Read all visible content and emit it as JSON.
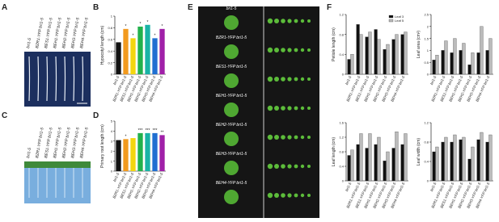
{
  "panel_labels": [
    "A",
    "B",
    "C",
    "D",
    "E",
    "F"
  ],
  "photos": [
    {
      "genotypes": [
        "bri1-5",
        "BZR1-YFP bri1-5",
        "BES1-YFP bri1-5",
        "BEH1-YFP bri1-5",
        "BEH2-YFP bri1-5",
        "BEH3-YFP bri1-5",
        "BEH4-YFP bri1-5"
      ]
    },
    {
      "genotypes": [
        "bri1-5",
        "BZR1-YFP bri1-5",
        "BES1-YFP bri1-5",
        "BEH1-YFP bri1-5",
        "BEH2-YFP bri1-5",
        "BEH3-YFP bri1-5",
        "BEH4-YFP bri1-5"
      ]
    },
    {
      "genotypes": [
        "bri1-5",
        "BZR1-YFP bri1-5",
        "BES1-YFP bri1-5",
        "BEH1-YFP bri1-5",
        "BEH2-YFP bri1-5",
        "BEH3-YFP bri1-5",
        "BEH4-YFP bri1-5"
      ]
    }
  ],
  "chart_data": [
    {
      "type": "bar",
      "ylabel": "Hypocotyl length (cm)",
      "categories": [
        "bri1-5",
        "BZR1-YFP bri1-5",
        "BES1-YFP bri1-5",
        "BEH1-YFP bri1-5",
        "BEH2-YFP bri1-5",
        "BEH3-YFP bri1-5",
        "BEH4-YFP bri1-5"
      ],
      "values": [
        0.55,
        0.78,
        0.62,
        0.82,
        0.85,
        0.62,
        0.78
      ],
      "colors": [
        "#111111",
        "#f29a1e",
        "#f4d60f",
        "#22b14c",
        "#19b3a6",
        "#1f6fd1",
        "#a020a8"
      ],
      "annotations": [
        null,
        "*",
        "*",
        "*",
        "*",
        "*",
        "*"
      ],
      "ylim": [
        0,
        1
      ],
      "yticks": [
        0,
        0.2,
        0.4,
        0.6,
        0.8,
        1
      ]
    },
    {
      "type": "bar",
      "ylabel": "Primary root length (cm)",
      "categories": [
        "bri1-5",
        "BZR1-YFP bri1-5",
        "BES1-YFP bri1-5",
        "BEH1-YFP bri1-5",
        "BEH2-YFP bri1-5",
        "BEH3-YFP bri1-5",
        "BEH4-YFP bri1-5"
      ],
      "values": [
        3.1,
        3.2,
        3.3,
        3.8,
        3.8,
        3.8,
        3.6
      ],
      "colors": [
        "#111111",
        "#f29a1e",
        "#f4d60f",
        "#22b14c",
        "#19b3a6",
        "#1f6fd1",
        "#a020a8"
      ],
      "annotations": [
        null,
        "*",
        null,
        "***",
        "***",
        "***",
        "**"
      ],
      "ylim": [
        0,
        5
      ],
      "yticks": [
        0,
        1,
        2,
        3,
        4,
        5
      ]
    },
    {
      "type": "grouped-bar",
      "ylabel": "Petiole length (cm)",
      "legend": true,
      "categories": [
        "bri1-5",
        "BZR1-YFP bri1-5",
        "BES1-YFP bri1-5",
        "BEH1-YFP bri1-5",
        "BEH2-YFP bri1-5",
        "BEH3-YFP bri1-5",
        "BEH4-YFP bri1-5"
      ],
      "series": [
        {
          "name": "Leaf 3",
          "color": "#111111",
          "values": [
            0.3,
            1.0,
            0.75,
            0.9,
            0.5,
            0.7,
            0.8
          ]
        },
        {
          "name": "Leaf 5",
          "color": "#bbbbbb",
          "values": [
            0.4,
            0.8,
            0.85,
            0.7,
            0.6,
            0.8,
            0.85
          ]
        }
      ],
      "ylim": [
        0,
        1.2
      ],
      "yticks": [
        0,
        0.4,
        0.8,
        1.2
      ]
    },
    {
      "type": "grouped-bar",
      "ylabel": "Leaf area (cm²)",
      "categories": [
        "bri1-5",
        "BZR1-YFP bri1-5",
        "BES1-YFP bri1-5",
        "BEH1-YFP bri1-5",
        "BEH2-YFP bri1-5",
        "BEH3-YFP bri1-5",
        "BEH4-YFP bri1-5"
      ],
      "series": [
        {
          "name": "Leaf 3",
          "color": "#111111",
          "values": [
            0.6,
            1.0,
            0.9,
            1.0,
            0.4,
            0.9,
            1.0
          ]
        },
        {
          "name": "Leaf 5",
          "color": "#bbbbbb",
          "values": [
            0.8,
            1.4,
            1.5,
            1.3,
            0.9,
            2.0,
            1.5
          ]
        }
      ],
      "ylim": [
        0,
        2.5
      ],
      "yticks": [
        0,
        0.5,
        1,
        1.5,
        2,
        2.5
      ]
    },
    {
      "type": "grouped-bar",
      "ylabel": "Leaf length (cm)",
      "categories": [
        "bri1-5",
        "BZR1-YFP bri1-5",
        "BES1-YFP bri1-5",
        "BEH1-YFP bri1-5",
        "BEH2-YFP bri1-5",
        "BEH3-YFP bri1-5",
        "BEH4-YFP bri1-5"
      ],
      "series": [
        {
          "name": "Leaf 3",
          "color": "#111111",
          "values": [
            0.7,
            1.0,
            0.9,
            1.0,
            0.55,
            0.9,
            1.0
          ]
        },
        {
          "name": "Leaf 5",
          "color": "#bbbbbb",
          "values": [
            0.85,
            1.3,
            1.3,
            1.2,
            0.8,
            1.35,
            1.3
          ]
        }
      ],
      "ylim": [
        0,
        1.6
      ],
      "yticks": [
        0,
        0.4,
        0.8,
        1.2,
        1.6
      ]
    },
    {
      "type": "grouped-bar",
      "ylabel": "Leaf width (cm)",
      "categories": [
        "bri1-5",
        "BZR1-YFP bri1-5",
        "BES1-YFP bri1-5",
        "BEH1-YFP bri1-5",
        "BEH2-YFP bri1-5",
        "BEH3-YFP bri1-5",
        "BEH4-YFP bri1-5"
      ],
      "series": [
        {
          "name": "Leaf 3",
          "color": "#111111",
          "values": [
            0.6,
            0.8,
            0.8,
            0.85,
            0.45,
            0.85,
            0.8
          ]
        },
        {
          "name": "Leaf 5",
          "color": "#bbbbbb",
          "values": [
            0.7,
            0.9,
            0.95,
            0.9,
            0.7,
            1.0,
            0.95
          ]
        }
      ],
      "ylim": [
        0,
        1.2
      ],
      "yticks": [
        0,
        0.4,
        0.8,
        1.2
      ]
    }
  ]
}
